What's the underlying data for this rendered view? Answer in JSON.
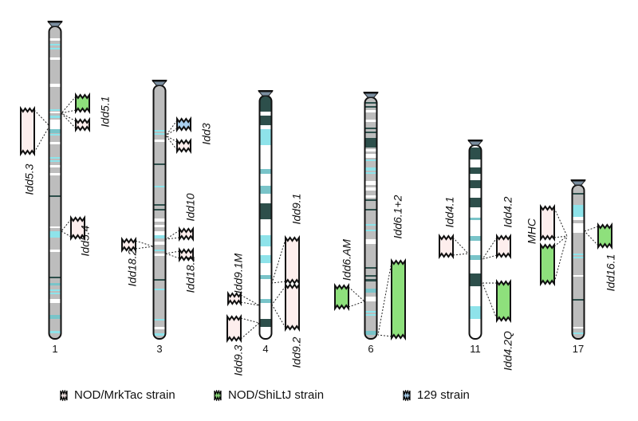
{
  "colors": {
    "nod_mrktac": "#fdeeed",
    "nod_shiltj": "#8ee07c",
    "strain_129": "#a9cfee",
    "band_gray": "#bdbdbd",
    "band_dark": "#2d4f4b",
    "band_cyan": "#8ee3ea",
    "band_teal": "#79c4c9"
  },
  "chromosomes": [
    {
      "name": "1"
    },
    {
      "name": "3"
    },
    {
      "name": "4"
    },
    {
      "name": "6"
    },
    {
      "name": "11"
    },
    {
      "name": "17"
    }
  ],
  "loci": [
    {
      "label": "Idd5.3",
      "chromosome": "1",
      "strains": [
        "nod_mrktac"
      ]
    },
    {
      "label": "Idd5.1",
      "chromosome": "1",
      "strains": [
        "nod_shiltj",
        "nod_mrktac"
      ]
    },
    {
      "label": "Idd5.4",
      "chromosome": "1",
      "strains": [
        "nod_mrktac"
      ]
    },
    {
      "label": "Idd3",
      "chromosome": "3",
      "strains": [
        "strain_129",
        "nod_mrktac"
      ]
    },
    {
      "label": "Idd10",
      "chromosome": "3",
      "strains": [
        "nod_mrktac"
      ]
    },
    {
      "label": "Idd18.1",
      "chromosome": "3",
      "strains": [
        "nod_mrktac"
      ]
    },
    {
      "label": "Idd18.2",
      "chromosome": "3",
      "strains": [
        "nod_mrktac"
      ]
    },
    {
      "label": "Idd9.1",
      "chromosome": "4",
      "strains": [
        "nod_mrktac"
      ]
    },
    {
      "label": "Idd9.2",
      "chromosome": "4",
      "strains": [
        "nod_mrktac"
      ]
    },
    {
      "label": "Idd9.1M",
      "chromosome": "4",
      "strains": [
        "nod_mrktac"
      ]
    },
    {
      "label": "Idd9.3",
      "chromosome": "4",
      "strains": [
        "nod_mrktac"
      ]
    },
    {
      "label": "Idd6.AM",
      "chromosome": "6",
      "strains": [
        "nod_shiltj"
      ]
    },
    {
      "label": "Idd6.1+2",
      "chromosome": "6",
      "strains": [
        "nod_shiltj"
      ]
    },
    {
      "label": "Idd4.1",
      "chromosome": "11",
      "strains": [
        "nod_mrktac"
      ]
    },
    {
      "label": "Idd4.2",
      "chromosome": "11",
      "strains": [
        "nod_mrktac"
      ]
    },
    {
      "label": "Idd4.2Q",
      "chromosome": "11",
      "strains": [
        "nod_shiltj"
      ]
    },
    {
      "label": "MHC",
      "chromosome": "17",
      "strains": [
        "nod_mrktac",
        "nod_shiltj"
      ]
    },
    {
      "label": "Idd16.1",
      "chromosome": "17",
      "strains": [
        "nod_shiltj"
      ]
    }
  ],
  "legend": [
    {
      "key": "nod_mrktac",
      "label": "NOD/MrkTac strain"
    },
    {
      "key": "nod_shiltj",
      "label": "NOD/ShiLtJ strain"
    },
    {
      "key": "strain_129",
      "label": "129 strain"
    }
  ]
}
